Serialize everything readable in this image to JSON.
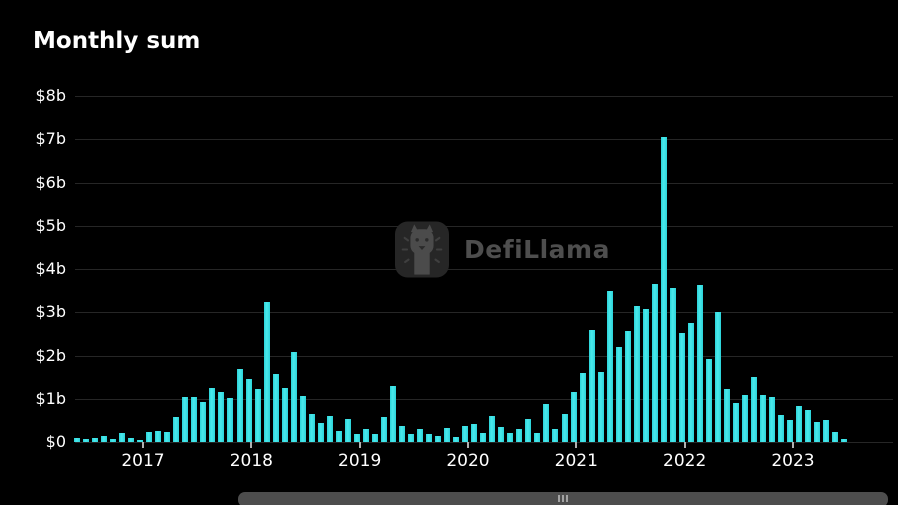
{
  "title": "Monthly sum",
  "watermark": {
    "text": "DefiLlama",
    "icon": "defillama-llama-logo"
  },
  "colors": {
    "background": "#000000",
    "bar": "#3ae1e4",
    "gridline": "#262626",
    "axis_label": "#ffffff",
    "watermark_text": "#4e4e4e",
    "scrollbar": "#4d4d4d"
  },
  "y_axis": {
    "tick_labels": [
      "$8b",
      "$7b",
      "$6b",
      "$5b",
      "$4b",
      "$3b",
      "$2b",
      "$1b",
      "$0"
    ]
  },
  "x_axis": {
    "tick_labels": [
      "2017",
      "2018",
      "2019",
      "2020",
      "2021",
      "2022",
      "2023"
    ]
  },
  "chart_data": {
    "type": "bar",
    "title": "Monthly sum",
    "y_unit": "$b",
    "ylim": [
      0,
      8
    ],
    "grid": true,
    "legend": false,
    "x": [
      "2016-06",
      "2016-07",
      "2016-08",
      "2016-09",
      "2016-10",
      "2016-11",
      "2016-12",
      "2017-01",
      "2017-02",
      "2017-03",
      "2017-04",
      "2017-05",
      "2017-06",
      "2017-07",
      "2017-08",
      "2017-09",
      "2017-10",
      "2017-11",
      "2017-12",
      "2018-01",
      "2018-02",
      "2018-03",
      "2018-04",
      "2018-05",
      "2018-06",
      "2018-07",
      "2018-08",
      "2018-09",
      "2018-10",
      "2018-11",
      "2018-12",
      "2019-01",
      "2019-02",
      "2019-03",
      "2019-04",
      "2019-05",
      "2019-06",
      "2019-07",
      "2019-08",
      "2019-09",
      "2019-10",
      "2019-11",
      "2019-12",
      "2020-01",
      "2020-02",
      "2020-03",
      "2020-04",
      "2020-05",
      "2020-06",
      "2020-07",
      "2020-08",
      "2020-09",
      "2020-10",
      "2020-11",
      "2020-12",
      "2021-01",
      "2021-02",
      "2021-03",
      "2021-04",
      "2021-05",
      "2021-06",
      "2021-07",
      "2021-08",
      "2021-09",
      "2021-10",
      "2021-11",
      "2021-12",
      "2022-01",
      "2022-02",
      "2022-03",
      "2022-04",
      "2022-05",
      "2022-06",
      "2022-07",
      "2022-08",
      "2022-09",
      "2022-10",
      "2022-11",
      "2022-12",
      "2023-01",
      "2023-02",
      "2023-03",
      "2023-04",
      "2023-05",
      "2023-06",
      "2023-07"
    ],
    "values": [
      0.09,
      0.07,
      0.09,
      0.13,
      0.06,
      0.2,
      0.09,
      0.05,
      0.23,
      0.25,
      0.23,
      0.57,
      1.05,
      1.05,
      0.93,
      1.26,
      1.16,
      1.01,
      1.69,
      1.46,
      1.23,
      3.24,
      1.57,
      1.26,
      2.08,
      1.07,
      0.65,
      0.45,
      0.61,
      0.26,
      0.53,
      0.19,
      0.3,
      0.19,
      0.57,
      1.3,
      0.36,
      0.19,
      0.3,
      0.19,
      0.15,
      0.32,
      0.11,
      0.38,
      0.42,
      0.22,
      0.61,
      0.35,
      0.21,
      0.3,
      0.53,
      0.22,
      0.88,
      0.3,
      0.65,
      1.15,
      1.6,
      2.58,
      1.62,
      3.5,
      2.2,
      2.56,
      3.14,
      3.08,
      3.66,
      7.05,
      3.55,
      2.52,
      2.76,
      3.62,
      1.91,
      3.01,
      1.23,
      0.9,
      1.08,
      1.5,
      1.08,
      1.04,
      0.62,
      0.52,
      0.83,
      0.73,
      0.46,
      0.52,
      0.23,
      0.08
    ]
  },
  "scrollbar": {
    "grip_icon": "drag-handle-icon"
  }
}
